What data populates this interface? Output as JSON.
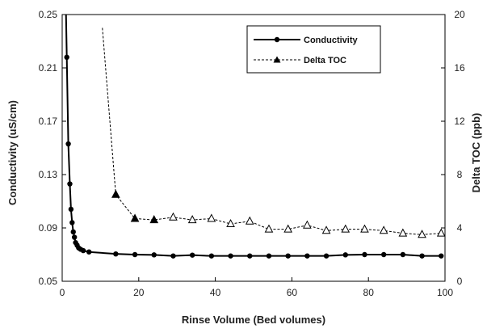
{
  "chart_data": {
    "type": "line",
    "xlabel": "Rinse Volume  (Bed volumes)",
    "ylabel": "Conductivity  (uS/cm)",
    "y2label": "Delta TOC  (ppb)",
    "xlim": [
      0,
      100
    ],
    "ylim": [
      0.05,
      0.25
    ],
    "y2lim": [
      0,
      20
    ],
    "x_ticks": [
      0,
      20,
      40,
      60,
      80,
      100
    ],
    "y_ticks": [
      "0.05",
      "0.09",
      "0.13",
      "0.17",
      "0.21",
      "0.25"
    ],
    "y2_ticks": [
      0,
      4,
      8,
      12,
      16,
      20
    ],
    "grid": false,
    "legend_position": "top-right",
    "series": [
      {
        "name": "Conductivity",
        "axis": "left",
        "style": "solid",
        "marker": "circle",
        "color": "#000000",
        "x": [
          1.2,
          1.6,
          2.0,
          2.3,
          2.6,
          2.9,
          3.2,
          3.5,
          3.9,
          4.3,
          4.8,
          5.5,
          7,
          14,
          19,
          24,
          29,
          34,
          39,
          44,
          49,
          54,
          59,
          64,
          69,
          74,
          79,
          84,
          89,
          94,
          99
        ],
        "y": [
          0.218,
          0.153,
          0.123,
          0.104,
          0.094,
          0.087,
          0.083,
          0.079,
          0.077,
          0.075,
          0.074,
          0.073,
          0.072,
          0.0705,
          0.07,
          0.0698,
          0.069,
          0.0696,
          0.069,
          0.069,
          0.069,
          0.069,
          0.069,
          0.069,
          0.069,
          0.0698,
          0.07,
          0.07,
          0.07,
          0.069,
          0.069
        ]
      },
      {
        "name": "Delta TOC",
        "axis": "right",
        "style": "dashed",
        "marker": "triangle",
        "color": "#000000",
        "x": [
          10.5,
          14,
          19,
          24,
          29,
          34,
          39,
          44,
          49,
          54,
          59,
          64,
          69,
          74,
          79,
          84,
          89,
          94,
          99
        ],
        "y": [
          19,
          6.5,
          4.7,
          4.6,
          4.8,
          4.6,
          4.7,
          4.3,
          4.5,
          3.9,
          3.9,
          4.2,
          3.8,
          3.9,
          3.9,
          3.8,
          3.6,
          3.5,
          3.6
        ]
      }
    ]
  }
}
